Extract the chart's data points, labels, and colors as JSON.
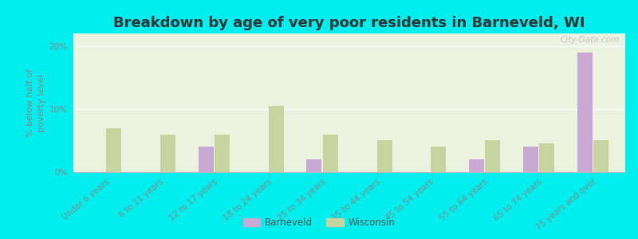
{
  "title": "Breakdown by age of very poor residents in Barneveld, WI",
  "ylabel": "% below half of\npoverty level",
  "categories": [
    "Under 6 years",
    "6 to 11 years",
    "12 to 17 years",
    "18 to 24 years",
    "25 to 34 years",
    "35 to 44 years",
    "45 to 54 years",
    "55 to 64 years",
    "65 to 74 years",
    "75 years and over"
  ],
  "barneveld_values": [
    0,
    0,
    4.0,
    0,
    2.0,
    0,
    0,
    2.0,
    4.0,
    19.0
  ],
  "wisconsin_values": [
    7.0,
    6.0,
    6.0,
    10.5,
    6.0,
    5.0,
    4.0,
    5.0,
    4.5,
    5.0
  ],
  "barneveld_color": "#c9a8d4",
  "wisconsin_color": "#c8d4a0",
  "background_color": "#00eeee",
  "plot_bg_color": "#edf2e0",
  "title_fontsize": 13,
  "ylabel_fontsize": 8,
  "tick_fontsize": 7.5,
  "ylim": [
    0,
    22
  ],
  "yticks": [
    0,
    10,
    20
  ],
  "ytick_labels": [
    "0%",
    "10%",
    "20%"
  ],
  "bar_width": 0.28,
  "legend_barneveld": "Barneveld",
  "legend_wisconsin": "Wisconsin",
  "watermark": "City-Data.com"
}
